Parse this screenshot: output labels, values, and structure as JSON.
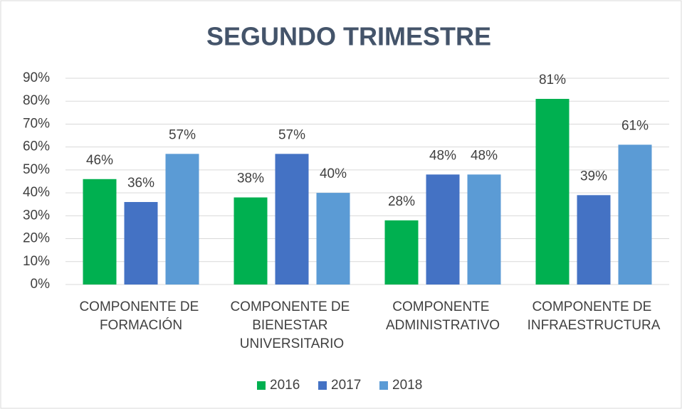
{
  "chart_data": {
    "type": "bar",
    "title": "SEGUNDO TRIMESTRE",
    "categories": [
      "COMPONENTE DE FORMACIÓN",
      "COMPONENTE DE BIENESTAR UNIVERSITARIO",
      "COMPONENTE ADMINISTRATIVO",
      "COMPONENTE DE INFRAESTRUCTURA"
    ],
    "series": [
      {
        "name": "2016",
        "color": "#00b050",
        "values": [
          46,
          38,
          28,
          81
        ],
        "value_labels": [
          "46%",
          "38%",
          "28%",
          "81%"
        ]
      },
      {
        "name": "2017",
        "color": "#4472c4",
        "values": [
          36,
          57,
          48,
          39
        ],
        "value_labels": [
          "36%",
          "57%",
          "48%",
          "39%"
        ]
      },
      {
        "name": "2018",
        "color": "#5b9bd5",
        "values": [
          57,
          40,
          48,
          61
        ],
        "value_labels": [
          "57%",
          "40%",
          "48%",
          "61%"
        ]
      }
    ],
    "ylim": [
      0,
      90
    ],
    "yticks": [
      {
        "value": 0,
        "label": "0%"
      },
      {
        "value": 10,
        "label": "10%"
      },
      {
        "value": 20,
        "label": "20%"
      },
      {
        "value": 30,
        "label": "30%"
      },
      {
        "value": 40,
        "label": "40%"
      },
      {
        "value": 50,
        "label": "50%"
      },
      {
        "value": 60,
        "label": "60%"
      },
      {
        "value": 70,
        "label": "70%"
      },
      {
        "value": 80,
        "label": "80%"
      },
      {
        "value": 90,
        "label": "90%"
      }
    ],
    "grid": true,
    "legend": "bottom"
  }
}
